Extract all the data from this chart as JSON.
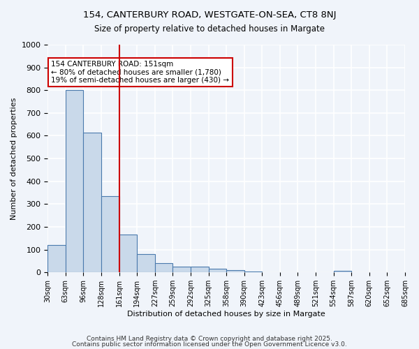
{
  "title1": "154, CANTERBURY ROAD, WESTGATE-ON-SEA, CT8 8NJ",
  "title2": "Size of property relative to detached houses in Margate",
  "xlabel": "Distribution of detached houses by size in Margate",
  "ylabel": "Number of detached properties",
  "bin_labels": [
    "30sqm",
    "63sqm",
    "96sqm",
    "128sqm",
    "161sqm",
    "194sqm",
    "227sqm",
    "259sqm",
    "292sqm",
    "325sqm",
    "358sqm",
    "390sqm",
    "423sqm",
    "456sqm",
    "489sqm",
    "521sqm",
    "554sqm",
    "587sqm",
    "620sqm",
    "652sqm",
    "685sqm"
  ],
  "bar_values": [
    120,
    800,
    615,
    335,
    165,
    80,
    40,
    25,
    25,
    15,
    10,
    5,
    0,
    0,
    0,
    0,
    8,
    0,
    0,
    0
  ],
  "bar_color": "#c9d9ea",
  "bar_edge_color": "#4a7aad",
  "red_line_x": 4,
  "annotation_text": "154 CANTERBURY ROAD: 151sqm\n← 80% of detached houses are smaller (1,780)\n19% of semi-detached houses are larger (430) →",
  "annotation_box_color": "#ffffff",
  "annotation_box_edge_color": "#cc0000",
  "ylim": [
    0,
    1000
  ],
  "yticks": [
    0,
    100,
    200,
    300,
    400,
    500,
    600,
    700,
    800,
    900,
    1000
  ],
  "bg_color": "#f0f4fa",
  "grid_color": "#ffffff",
  "footer1": "Contains HM Land Registry data © Crown copyright and database right 2025.",
  "footer2": "Contains public sector information licensed under the Open Government Licence v3.0."
}
